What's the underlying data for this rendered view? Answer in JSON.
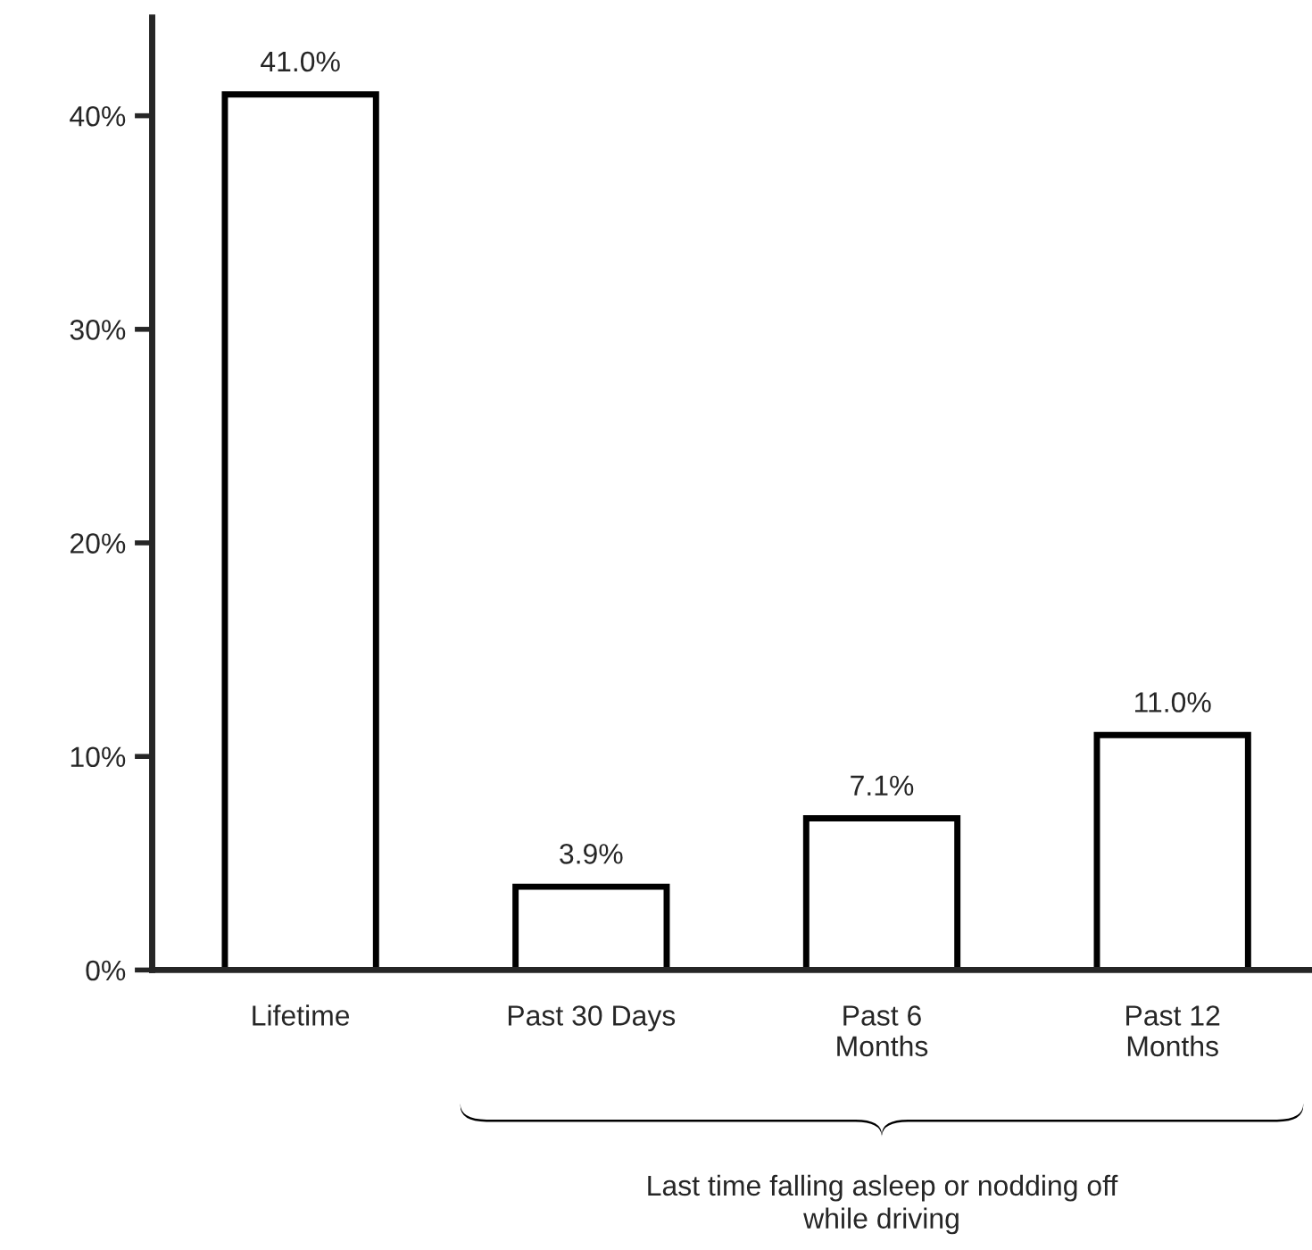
{
  "chart_data": {
    "type": "bar",
    "categories": [
      "Lifetime",
      "Past 30 Days",
      "Past 6\nMonths",
      "Past 12\nMonths"
    ],
    "values": [
      41.0,
      3.9,
      7.1,
      11.0
    ],
    "value_labels": [
      "41.0%",
      "3.9%",
      "7.1%",
      "11.0%"
    ],
    "color": "#ffffff",
    "ylim": [
      0,
      44.6
    ],
    "yticks": [
      {
        "value": 0,
        "label": "0%"
      },
      {
        "value": 10,
        "label": "10%"
      },
      {
        "value": 20,
        "label": "20%"
      },
      {
        "value": 30,
        "label": "30%"
      },
      {
        "value": 40,
        "label": "40%"
      }
    ],
    "annotations": [
      "Last time falling asleep or nodding off\nwhile driving"
    ],
    "grid": false,
    "legend": false
  }
}
